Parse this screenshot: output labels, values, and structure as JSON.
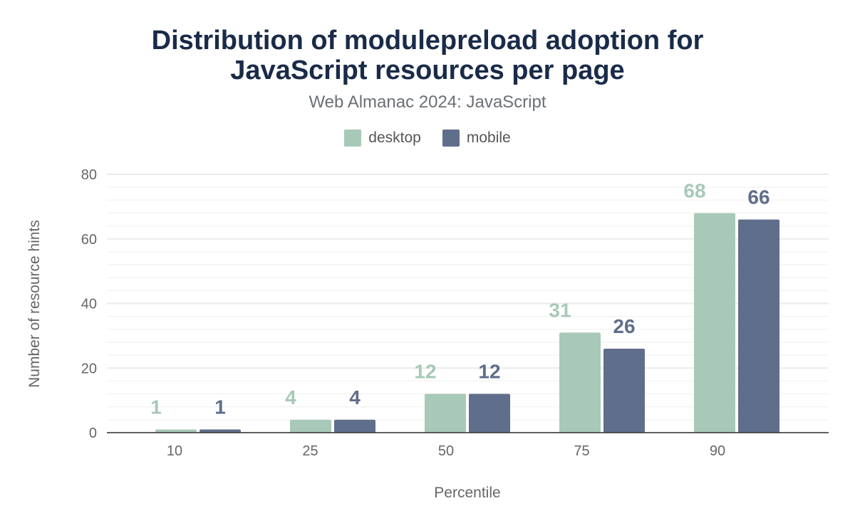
{
  "title_lines": [
    "Distribution of modulepreload adoption for",
    "JavaScript resources per page"
  ],
  "subtitle": "Web Almanac 2024: JavaScript",
  "chart_data": {
    "type": "bar",
    "title": "Distribution of modulepreload adoption for JavaScript resources per page",
    "subtitle": "Web Almanac 2024: JavaScript",
    "xlabel": "Percentile",
    "ylabel": "Number of resource hints",
    "categories": [
      "10",
      "25",
      "50",
      "75",
      "90"
    ],
    "series": [
      {
        "name": "desktop",
        "color": "#a8c9b8",
        "values": [
          1,
          4,
          12,
          31,
          68
        ]
      },
      {
        "name": "mobile",
        "color": "#5f6e8a",
        "values": [
          1,
          4,
          12,
          26,
          66
        ]
      }
    ],
    "ylim": [
      0,
      80
    ],
    "yticks": [
      0,
      20,
      40,
      60,
      80
    ],
    "grid": true,
    "legend": "top"
  }
}
